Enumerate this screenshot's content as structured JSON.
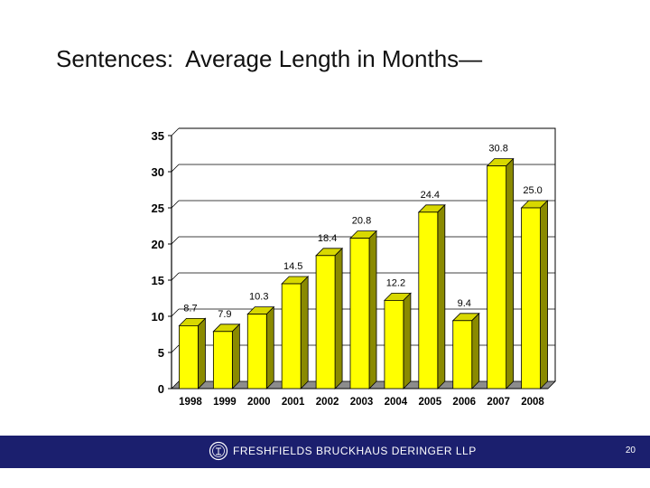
{
  "slide": {
    "title": "Sentences:  Average Length in Months—",
    "page_number": "20"
  },
  "footer": {
    "logo_text": "FRESHFIELDS BRUCKHAUS DERINGER LLP",
    "logo_icon": "freshfields-seal-icon"
  },
  "colors": {
    "bar_front": "#ffff00",
    "bar_side": "#8a8a00",
    "bar_top": "#d8d800",
    "footer_band": "#1b1f6e",
    "floor": "#8c8c8c"
  },
  "chart_data": {
    "type": "bar",
    "title": "",
    "xlabel": "",
    "ylabel": "",
    "categories": [
      "1998",
      "1999",
      "2000",
      "2001",
      "2002",
      "2003",
      "2004",
      "2005",
      "2006",
      "2007",
      "2008"
    ],
    "values": [
      8.7,
      7.9,
      10.3,
      14.5,
      18.4,
      20.8,
      12.2,
      24.4,
      9.4,
      30.8,
      25.0
    ],
    "value_labels": [
      "8.7",
      "7.9",
      "10.3",
      "14.5",
      "18.4",
      "20.8",
      "12.2",
      "24.4",
      "9.4",
      "30.8",
      "25.0"
    ],
    "ylim": [
      0,
      35
    ],
    "yticks": [
      0,
      5,
      10,
      15,
      20,
      25,
      30,
      35
    ],
    "grid": true,
    "three_d": true,
    "legend": false
  }
}
